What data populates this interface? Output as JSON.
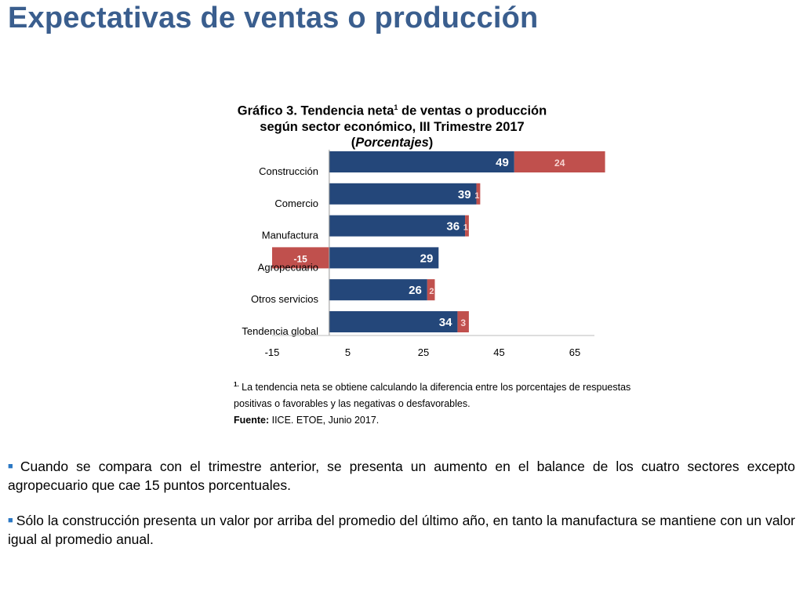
{
  "page": {
    "title": "Expectativas de ventas o producción"
  },
  "chart_header": {
    "line1_a": "Gráfico 3. Tendencia neta",
    "line1_sup": "1",
    "line1_b": " de ventas o producción",
    "line2": "según sector económico, III Trimestre 2017",
    "line3_paren_open": "(",
    "line3_italic": "Porcentajes",
    "line3_paren_close": ")"
  },
  "chart_data": {
    "type": "bar",
    "orientation": "horizontal",
    "stacked": true,
    "categories": [
      "Construcción",
      "Comercio",
      "Manufactura",
      "Agropecuario",
      "Otros servicios",
      "Tendencia global"
    ],
    "series": [
      {
        "values": [
          49,
          39,
          36,
          29,
          26,
          34
        ],
        "color": "#24477a"
      },
      {
        "values": [
          24,
          1,
          1,
          -15,
          2,
          3
        ],
        "color": "#c0504d"
      }
    ],
    "x_ticks": [
      -15,
      5,
      25,
      45,
      65
    ],
    "xlim": [
      -15,
      65
    ],
    "grid": false,
    "legend": "none"
  },
  "footnote": {
    "marker": "1.",
    "text": " La tendencia neta se obtiene calculando la diferencia entre los porcentajes de respuestas positivas o favorables y las negativas o desfavorables.",
    "source_label": "Fuente:",
    "source_text": " IICE. ETOE, Junio 2017."
  },
  "bullets": [
    "Cuando se compara con el trimestre anterior, se presenta un aumento en el balance de los cuatro sectores excepto agropecuario que cae 15 puntos porcentuales.",
    "Sólo la construcción presenta un valor por arriba del promedio del último año, en tanto la manufactura se mantiene con un valor igual al promedio anual."
  ],
  "bullet_marker": "■"
}
